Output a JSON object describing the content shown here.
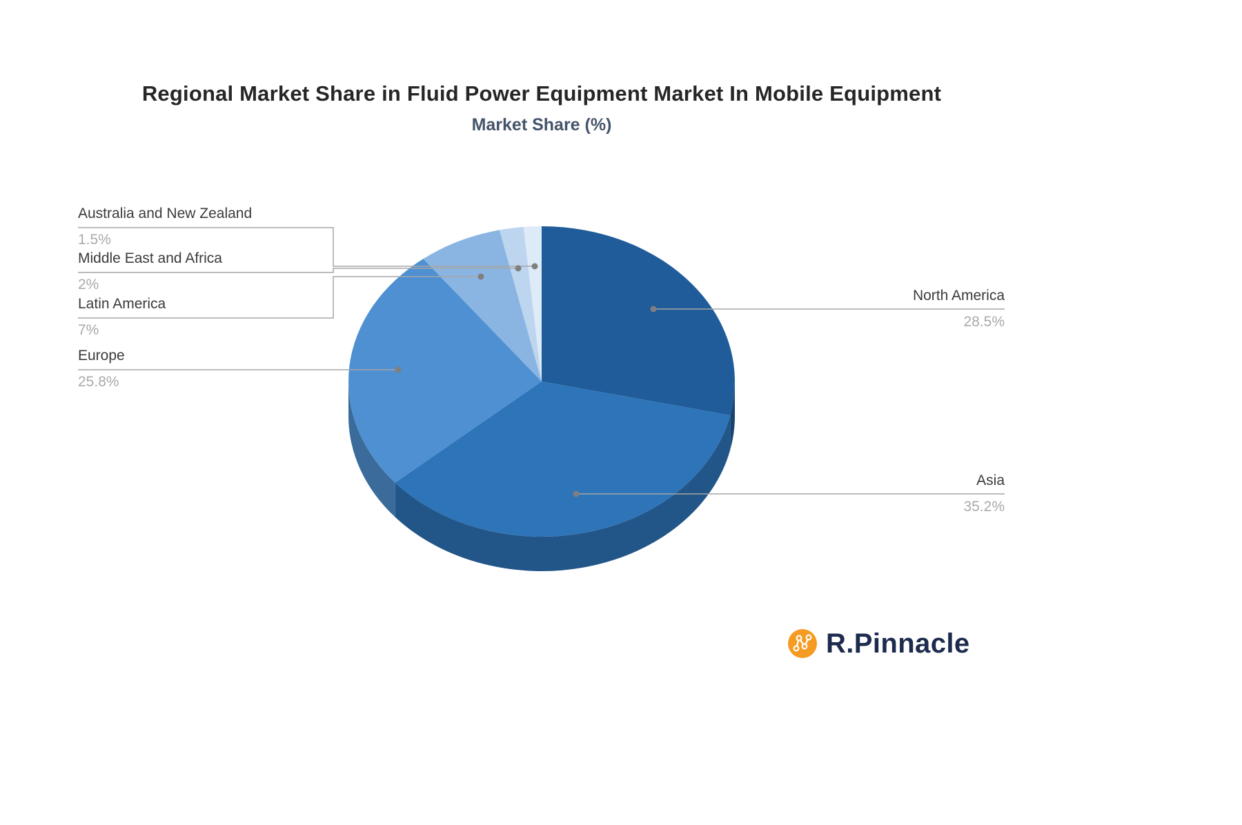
{
  "header": {
    "title": "Regional Market Share in Fluid Power Equipment Market In Mobile Equipment",
    "subtitle": "Market Share (%)"
  },
  "chart_data": {
    "type": "pie",
    "title": "Regional Market Share in Fluid Power Equipment Market In Mobile Equipment",
    "subtitle": "Market Share (%)",
    "unit": "%",
    "effect": "3d",
    "start_angle_deg": -90,
    "direction": "clockwise",
    "legend_position": "none",
    "slices": [
      {
        "label": "North America",
        "value": 28.5,
        "display": "28.5%",
        "color": "#1F5C99",
        "label_side": "right"
      },
      {
        "label": "Asia",
        "value": 35.2,
        "display": "35.2%",
        "color": "#2E74B8",
        "label_side": "right"
      },
      {
        "label": "Europe",
        "value": 25.8,
        "display": "25.8%",
        "color": "#4E90D2",
        "label_side": "left"
      },
      {
        "label": "Latin America",
        "value": 7,
        "display": "7%",
        "color": "#8AB5E2",
        "label_side": "left"
      },
      {
        "label": "Middle East and Africa",
        "value": 2,
        "display": "2%",
        "color": "#BDD5EF",
        "label_side": "left"
      },
      {
        "label": "Australia and New Zealand",
        "value": 1.5,
        "display": "1.5%",
        "color": "#DDEAF7",
        "label_side": "left"
      }
    ]
  },
  "branding": {
    "logo_text": "R.Pinnacle",
    "logo_icon": "molecule-network-icon",
    "icon_color": "#F59B23",
    "text_color": "#1D2B4E"
  }
}
